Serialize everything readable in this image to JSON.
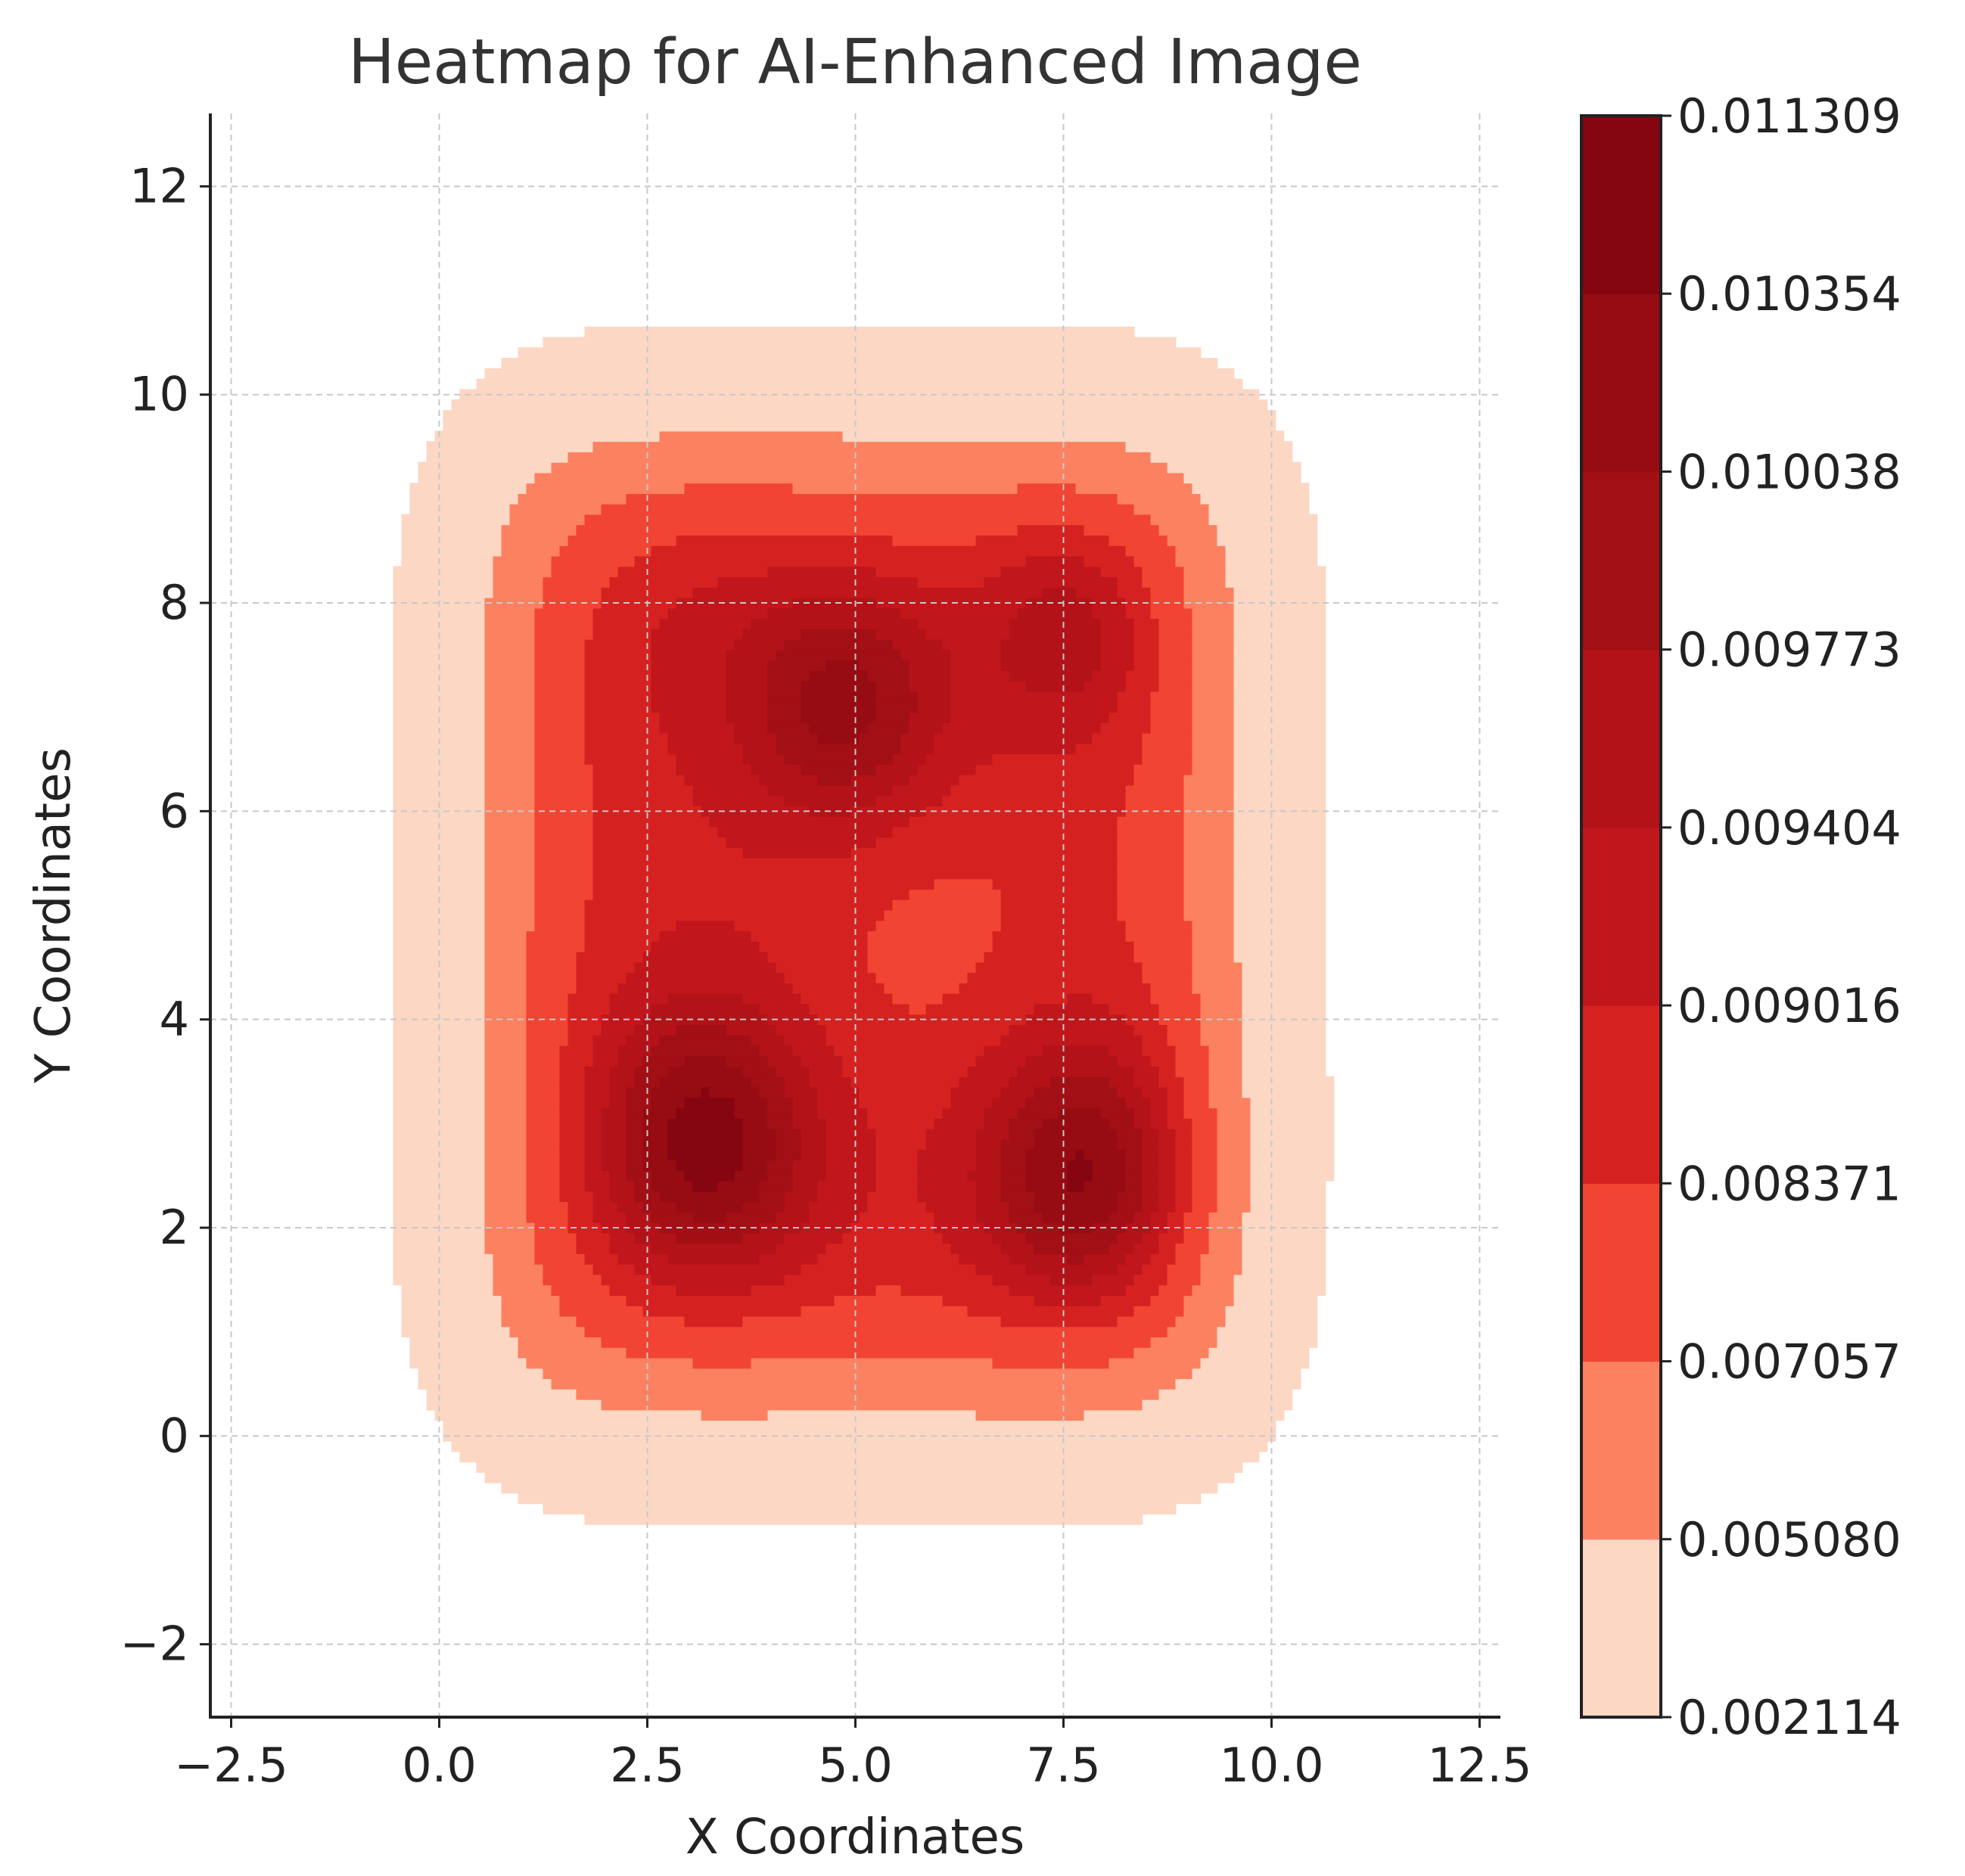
{
  "chart_data": {
    "type": "heatmap",
    "subtype": "filled-contour (kernel density)",
    "title": "Heatmap for AI-Enhanced Image",
    "xlabel": "X Coordinates",
    "ylabel": "Y Coordinates",
    "xlim": [
      -2.75,
      12.75
    ],
    "ylim": [
      -2.7,
      12.7
    ],
    "xticks": [
      -2.5,
      0.0,
      2.5,
      5.0,
      7.5,
      10.0,
      12.5
    ],
    "xtick_labels": [
      "−2.5",
      "0.0",
      "2.5",
      "5.0",
      "7.5",
      "10.0",
      "12.5"
    ],
    "yticks": [
      -2,
      0,
      2,
      4,
      6,
      8,
      10,
      12
    ],
    "ytick_labels": [
      "−2",
      "0",
      "2",
      "4",
      "6",
      "8",
      "10",
      "12"
    ],
    "grid": true,
    "colormap": "Reds",
    "colorbar_levels": [
      "0.002114",
      "0.005080",
      "0.007057",
      "0.008371",
      "0.009016",
      "0.009404",
      "0.009773",
      "0.010038",
      "0.010354",
      "0.011309"
    ],
    "colorbar_level_values": [
      0.002114,
      0.00508,
      0.007057,
      0.008371,
      0.009016,
      0.009404,
      0.009773,
      0.010038,
      0.010354,
      0.011309
    ],
    "band_colors": [
      "#fcd7c4",
      "#fc8161",
      "#f14432",
      "#d52221",
      "#c1161b",
      "#b31218",
      "#a20f15",
      "#960c12",
      "#850510"
    ],
    "density_peaks": [
      {
        "x": 3.2,
        "y": 2.8,
        "level": "max band"
      },
      {
        "x": 7.8,
        "y": 2.5,
        "level": "max band"
      },
      {
        "x": 4.9,
        "y": 7.0,
        "level": "max band"
      },
      {
        "x": 7.6,
        "y": 7.8,
        "level": "upper band"
      }
    ]
  }
}
